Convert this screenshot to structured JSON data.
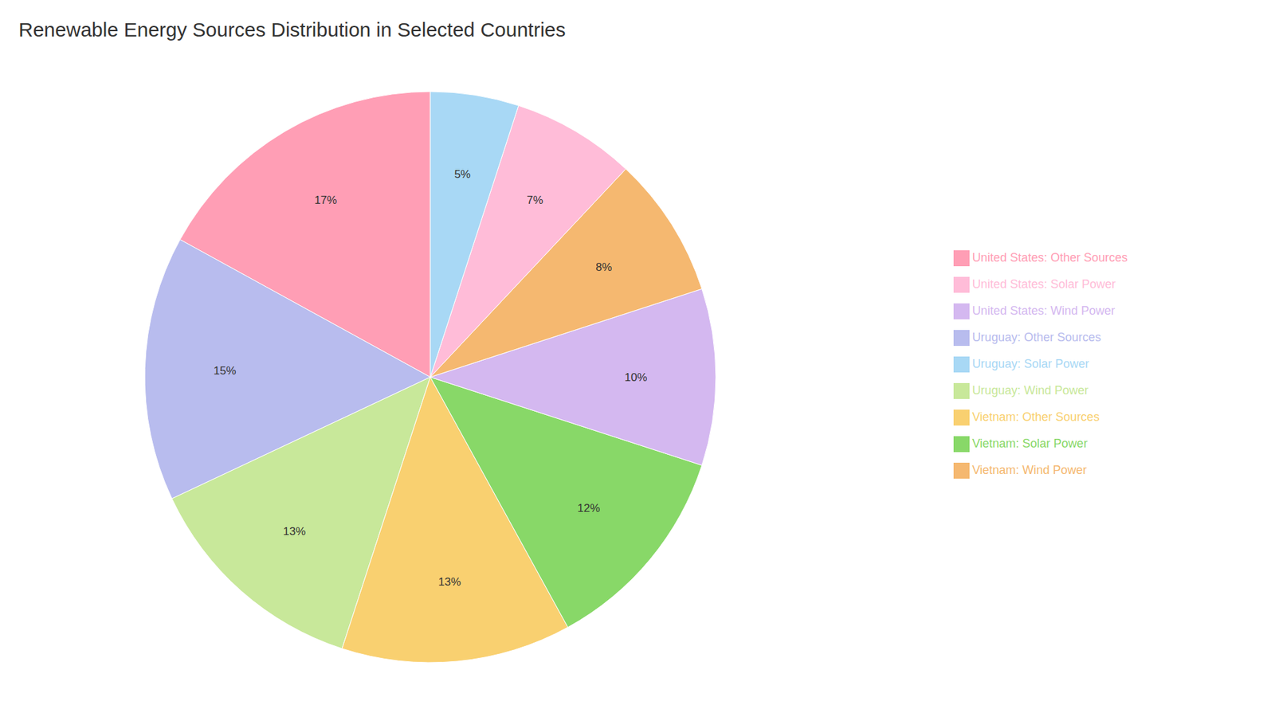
{
  "chart_data": {
    "type": "pie",
    "title": "Renewable Energy Sources Distribution in Selected Countries",
    "categories": [
      "United States: Other Sources",
      "Uruguay: Other Sources",
      "Uruguay: Wind Power",
      "Vietnam: Other Sources",
      "Vietnam: Solar Power",
      "United States: Wind Power",
      "Vietnam: Wind Power",
      "United States: Solar Power",
      "Uruguay: Solar Power"
    ],
    "values": [
      17,
      15,
      13,
      13,
      12,
      10,
      8,
      7,
      5
    ],
    "value_labels": [
      "17%",
      "15%",
      "13%",
      "13%",
      "12%",
      "10%",
      "8%",
      "7%",
      "5%"
    ],
    "colors": [
      "#FF9EB5",
      "#B8BCEE",
      "#C8E89A",
      "#F9D070",
      "#88D868",
      "#D4B8F0",
      "#F5B870",
      "#FFBCD8",
      "#A8D8F5"
    ],
    "data_labels": true,
    "legend": "right"
  }
}
